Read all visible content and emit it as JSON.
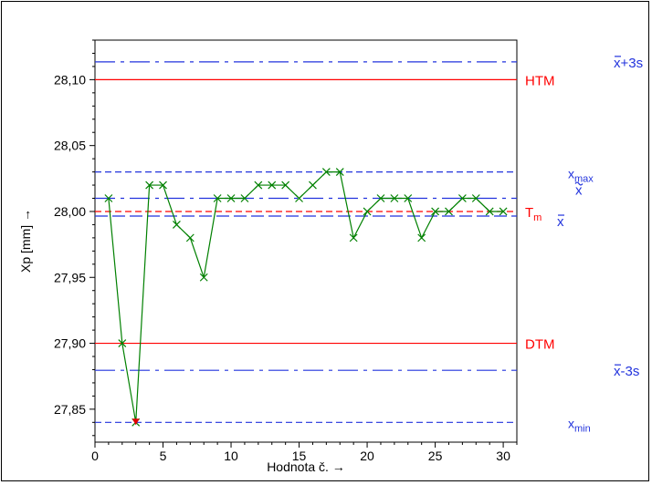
{
  "chart_data": {
    "type": "line",
    "title": "",
    "xlabel": "Hodnota č. →",
    "ylabel": "Xp [mm] →",
    "xlim": [
      0,
      31
    ],
    "ylim": [
      27.825,
      28.13
    ],
    "grid": false,
    "x_ticks": [
      0,
      5,
      10,
      15,
      20,
      25,
      30
    ],
    "x_tick_labels": [
      "0",
      "5",
      "10",
      "15",
      "20",
      "25",
      "30"
    ],
    "y_ticks": [
      27.85,
      27.9,
      27.95,
      28.0,
      28.05,
      28.1
    ],
    "y_tick_labels": [
      "27,85",
      "27,90",
      "27,95",
      "28,00",
      "28,05",
      "28,10"
    ],
    "series": [
      {
        "color": "#008000",
        "marker": "x",
        "x": [
          1,
          2,
          3,
          4,
          5,
          6,
          7,
          8,
          9,
          10,
          11,
          12,
          13,
          14,
          15,
          16,
          17,
          18,
          19,
          20,
          21,
          22,
          23,
          24,
          25,
          26,
          27,
          28,
          29,
          30
        ],
        "y": [
          28.01,
          27.9,
          27.84,
          28.02,
          28.02,
          27.99,
          27.98,
          27.95,
          28.01,
          28.01,
          28.01,
          28.02,
          28.02,
          28.02,
          28.01,
          28.02,
          28.03,
          28.03,
          27.98,
          28.0,
          28.01,
          28.01,
          28.01,
          27.98,
          28.0,
          28.0,
          28.01,
          28.01,
          28.0,
          28.0
        ]
      }
    ],
    "out_of_limit_marker": {
      "x": 3,
      "y": 27.84,
      "color": "#e00000"
    },
    "reference_lines": [
      {
        "y": 28.1,
        "color": "#ff0000",
        "style": "solid",
        "text": "HTM",
        "sub": "",
        "pre": "",
        "over": ""
      },
      {
        "y": 27.9,
        "color": "#ff0000",
        "style": "solid",
        "text": "DTM",
        "sub": "",
        "pre": "",
        "over": ""
      },
      {
        "y": 28.0,
        "color": "#ff0000",
        "style": "dashed",
        "text": "T",
        "sub": "m",
        "pre": "",
        "over": ""
      },
      {
        "y": 28.1135,
        "color": "#2233dd",
        "style": "dashdot",
        "text": "+3s",
        "sub": "",
        "pre": "x",
        "over": "bar"
      },
      {
        "y": 27.8795,
        "color": "#2233dd",
        "style": "dashdot",
        "text": "-3s",
        "sub": "",
        "pre": "x",
        "over": "bar"
      },
      {
        "y": 28.03,
        "color": "#2233dd",
        "style": "dashed",
        "text": "x",
        "sub": "max",
        "pre": "",
        "over": ""
      },
      {
        "y": 27.84,
        "color": "#2233dd",
        "style": "dashed",
        "text": "x",
        "sub": "min",
        "pre": "",
        "over": ""
      },
      {
        "y": 27.9965,
        "color": "#2233dd",
        "style": "longdash",
        "text": "x",
        "sub": "",
        "pre": "",
        "over": "bar"
      },
      {
        "y": 28.01,
        "color": "#2233dd",
        "style": "dashdot",
        "text": "x",
        "sub": "",
        "pre": "",
        "over": "tilde"
      }
    ]
  }
}
